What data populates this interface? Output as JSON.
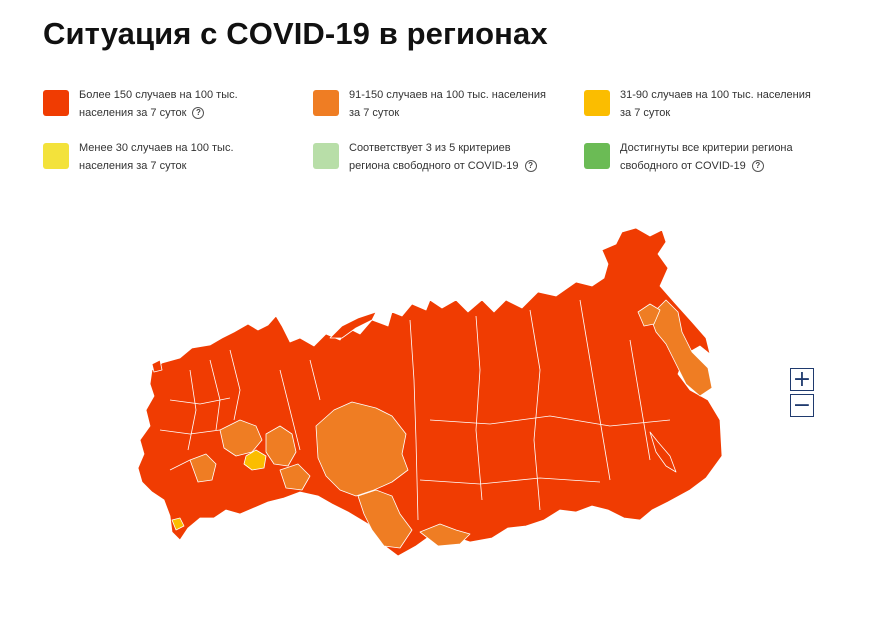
{
  "title": "Ситуация с COVID-19 в регионах",
  "legend": [
    {
      "color": "#f03c02",
      "line1": "Более 150 случаев на 100 тыс.",
      "line2": "населения за 7 суток",
      "help": true
    },
    {
      "color": "#ef7d23",
      "line1": "91-150 случаев на 100 тыс. населения",
      "line2": "за 7 суток",
      "help": false
    },
    {
      "color": "#fbbd00",
      "line1": "31-90 случаев на 100 тыс. населения",
      "line2": "за 7 суток",
      "help": false
    },
    {
      "color": "#f3e23b",
      "line1": "Менее 30 случаев на 100 тыс.",
      "line2": "населения за 7 суток",
      "help": false
    },
    {
      "color": "#b8dea8",
      "line1": "Соответствует 3 из 5 критериев",
      "line2": "региона свободного от COVID-19",
      "help": true
    },
    {
      "color": "#6bbb55",
      "line1": "Достигнуты все критерии региона",
      "line2": "свободного от COVID-19",
      "help": true
    }
  ],
  "help_glyph": "?",
  "zoom": {
    "in_label": "+",
    "out_label": "−"
  },
  "map_colors": {
    "high": "#f03c02",
    "mid": "#ef7d23",
    "low": "#fbbd00",
    "border": "#ffffff"
  }
}
